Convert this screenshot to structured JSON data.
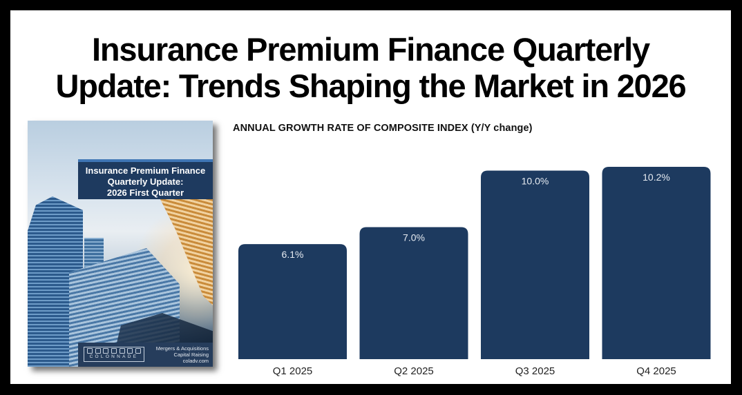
{
  "headline": {
    "line1": "Insurance Premium Finance Quarterly",
    "line2": "Update: Trends Shaping the Market in 2026"
  },
  "report_cover": {
    "title_line1": "Insurance Premium Finance",
    "title_line2": "Quarterly Update:",
    "title_line3": "2026 First Quarter",
    "logo_text": "COLONNADE",
    "footer_line1": "Mergers & Acquisitions",
    "footer_line2": "Capital Raising",
    "footer_line3": "coladv.com",
    "accent_color": "#1e3a5f"
  },
  "chart_data": {
    "type": "bar",
    "title": "ANNUAL GROWTH RATE OF COMPOSITE INDEX (Y/Y change)",
    "categories": [
      "Q1 2025",
      "Q2 2025",
      "Q3 2025",
      "Q4 2025"
    ],
    "values": [
      6.1,
      7.0,
      10.0,
      10.2
    ],
    "data_labels": [
      "6.1%",
      "7.0%",
      "10.0%",
      "10.2%"
    ],
    "xlabel": "",
    "ylabel": "",
    "ylim": [
      0,
      10.2
    ],
    "grid": false,
    "legend": "none",
    "bar_color": "#1d3a5f",
    "label_color": "#e6ebf1"
  }
}
